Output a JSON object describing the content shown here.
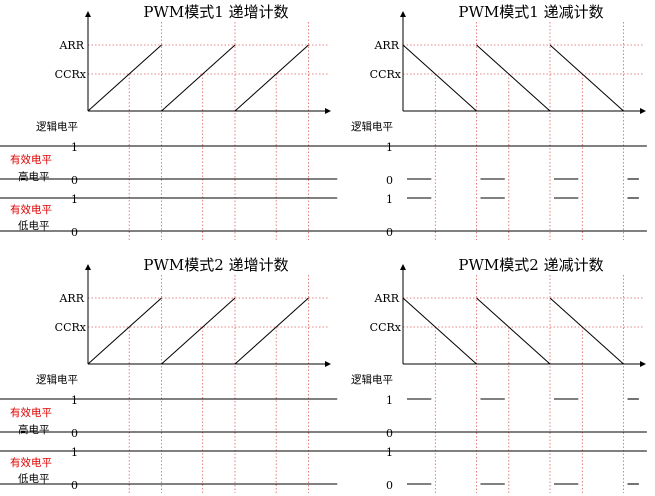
{
  "labels": {
    "arr": "ARR",
    "ccr": "CCRx",
    "logic_level": "逻辑电平",
    "effective": "有效电平",
    "high_level": "高电平",
    "low_level": "低电平",
    "one": "1",
    "zero": "0"
  },
  "diagrams": [
    {
      "title": "PWM模式1 递增计数",
      "counting": "up",
      "high_effective": [
        1,
        0,
        1,
        0,
        1,
        0,
        1,
        0
      ],
      "low_effective": [
        0,
        1,
        0,
        1,
        0,
        1,
        0,
        1
      ]
    },
    {
      "title": "PWM模式1 递减计数",
      "counting": "down",
      "high_effective": [
        0,
        1,
        0,
        1,
        0,
        1,
        0,
        1
      ],
      "low_effective": [
        1,
        0,
        1,
        0,
        1,
        0,
        1,
        0
      ]
    },
    {
      "title": "PWM模式2 递增计数",
      "counting": "up",
      "high_effective": [
        0,
        1,
        0,
        1,
        0,
        1,
        0,
        1
      ],
      "low_effective": [
        1,
        0,
        1,
        0,
        1,
        0,
        1,
        0
      ]
    },
    {
      "title": "PWM模式2 递减计数",
      "counting": "down",
      "high_effective": [
        1,
        0,
        1,
        0,
        1,
        0,
        1,
        0
      ],
      "low_effective": [
        0,
        1,
        0,
        1,
        0,
        1,
        0,
        1
      ]
    }
  ]
}
